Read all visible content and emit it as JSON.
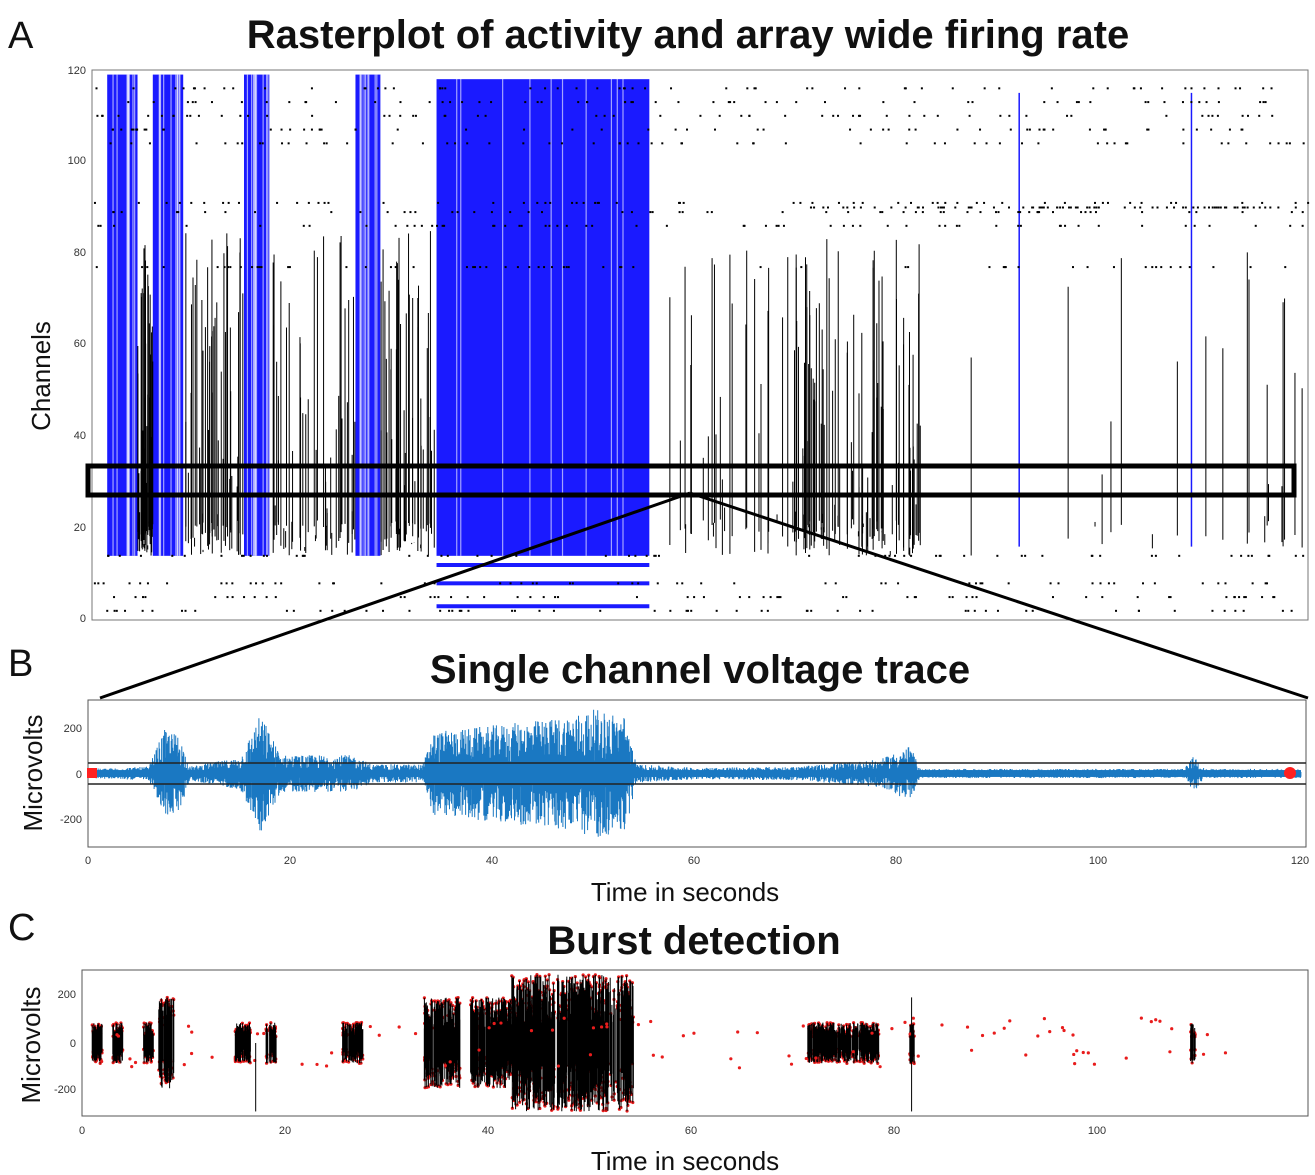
{
  "panel_a": {
    "letter": "A",
    "title": "Rasterplot of activity and array wide firing rate",
    "ylabel": "Channels",
    "yticks": [
      "0",
      "20",
      "40",
      "60",
      "80",
      "100",
      "120"
    ]
  },
  "panel_b": {
    "letter": "B",
    "title": "Single channel voltage trace",
    "ylabel": "Microvolts",
    "xlabel": "Time in seconds",
    "yticks": [
      "200",
      "0",
      "-200"
    ],
    "xticks": [
      "0",
      "20",
      "40",
      "60",
      "80",
      "100",
      "120"
    ]
  },
  "panel_c": {
    "letter": "C",
    "title": "Burst detection",
    "ylabel": "Microvolts",
    "xlabel": "Time in seconds",
    "yticks": [
      "200",
      "0",
      "-200"
    ],
    "xticks": [
      "0",
      "20",
      "40",
      "60",
      "80",
      "100"
    ]
  },
  "colors": {
    "blue_raster": "#1a1aff",
    "black_raster": "#000000",
    "trace_blue": "#1a78c2",
    "threshold_red": "#ff2020",
    "burst_black": "#000000",
    "burst_red": "#e81c1c"
  },
  "chart_data": [
    {
      "type": "scatter",
      "panel": "A",
      "title": "Rasterplot of activity and array wide firing rate",
      "xlabel": "",
      "ylabel": "Channels",
      "xlim": [
        0,
        120
      ],
      "ylim": [
        0,
        120
      ],
      "yticks": [
        0,
        20,
        40,
        60,
        80,
        100,
        120
      ],
      "blue_bands_seconds": [
        [
          1.5,
          4.5
        ],
        [
          6,
          9
        ],
        [
          15,
          17.5
        ],
        [
          26,
          28.5
        ],
        [
          34,
          55
        ]
      ],
      "highlighted_channel_range": [
        27,
        33
      ]
    },
    {
      "type": "line",
      "panel": "B",
      "title": "Single channel voltage trace",
      "xlabel": "Time in seconds",
      "ylabel": "Microvolts",
      "xlim": [
        0,
        120
      ],
      "ylim": [
        -320,
        320
      ],
      "xticks": [
        0,
        20,
        40,
        60,
        80,
        100,
        120
      ],
      "yticks": [
        200,
        0,
        -200
      ],
      "threshold_lines_uV": [
        45,
        -45
      ],
      "envelope": [
        {
          "x": 0,
          "amp": 20
        },
        {
          "x": 6,
          "amp": 30
        },
        {
          "x": 7.5,
          "amp": 190
        },
        {
          "x": 9,
          "amp": 170
        },
        {
          "x": 10,
          "amp": 30
        },
        {
          "x": 15,
          "amp": 70
        },
        {
          "x": 17,
          "amp": 260
        },
        {
          "x": 19,
          "amp": 80
        },
        {
          "x": 26,
          "amp": 80
        },
        {
          "x": 28,
          "amp": 40
        },
        {
          "x": 33,
          "amp": 40
        },
        {
          "x": 34,
          "amp": 180
        },
        {
          "x": 38,
          "amp": 200
        },
        {
          "x": 42,
          "amp": 220
        },
        {
          "x": 46,
          "amp": 240
        },
        {
          "x": 50,
          "amp": 280
        },
        {
          "x": 53,
          "amp": 250
        },
        {
          "x": 54,
          "amp": 40
        },
        {
          "x": 60,
          "amp": 25
        },
        {
          "x": 70,
          "amp": 30
        },
        {
          "x": 78,
          "amp": 60
        },
        {
          "x": 81,
          "amp": 120
        },
        {
          "x": 82,
          "amp": 20
        },
        {
          "x": 108,
          "amp": 20
        },
        {
          "x": 109,
          "amp": 80
        },
        {
          "x": 110,
          "amp": 20
        },
        {
          "x": 120,
          "amp": 20
        }
      ]
    },
    {
      "type": "scatter",
      "panel": "C",
      "title": "Burst detection",
      "xlabel": "Time in seconds",
      "ylabel": "Microvolts",
      "xlim": [
        0,
        120
      ],
      "ylim": [
        -320,
        320
      ],
      "xticks": [
        0,
        20,
        40,
        60,
        80,
        100
      ],
      "yticks": [
        200,
        0,
        -200
      ],
      "bursts_seconds": [
        [
          1,
          2
        ],
        [
          3,
          4
        ],
        [
          6,
          7
        ],
        [
          7.5,
          9
        ],
        [
          15,
          16.5
        ],
        [
          18,
          19
        ],
        [
          25.5,
          27.5
        ],
        [
          33.5,
          37
        ],
        [
          38,
          42
        ],
        [
          42,
          54
        ],
        [
          71,
          78
        ],
        [
          81,
          81.5
        ],
        [
          108.5,
          109
        ]
      ]
    }
  ]
}
